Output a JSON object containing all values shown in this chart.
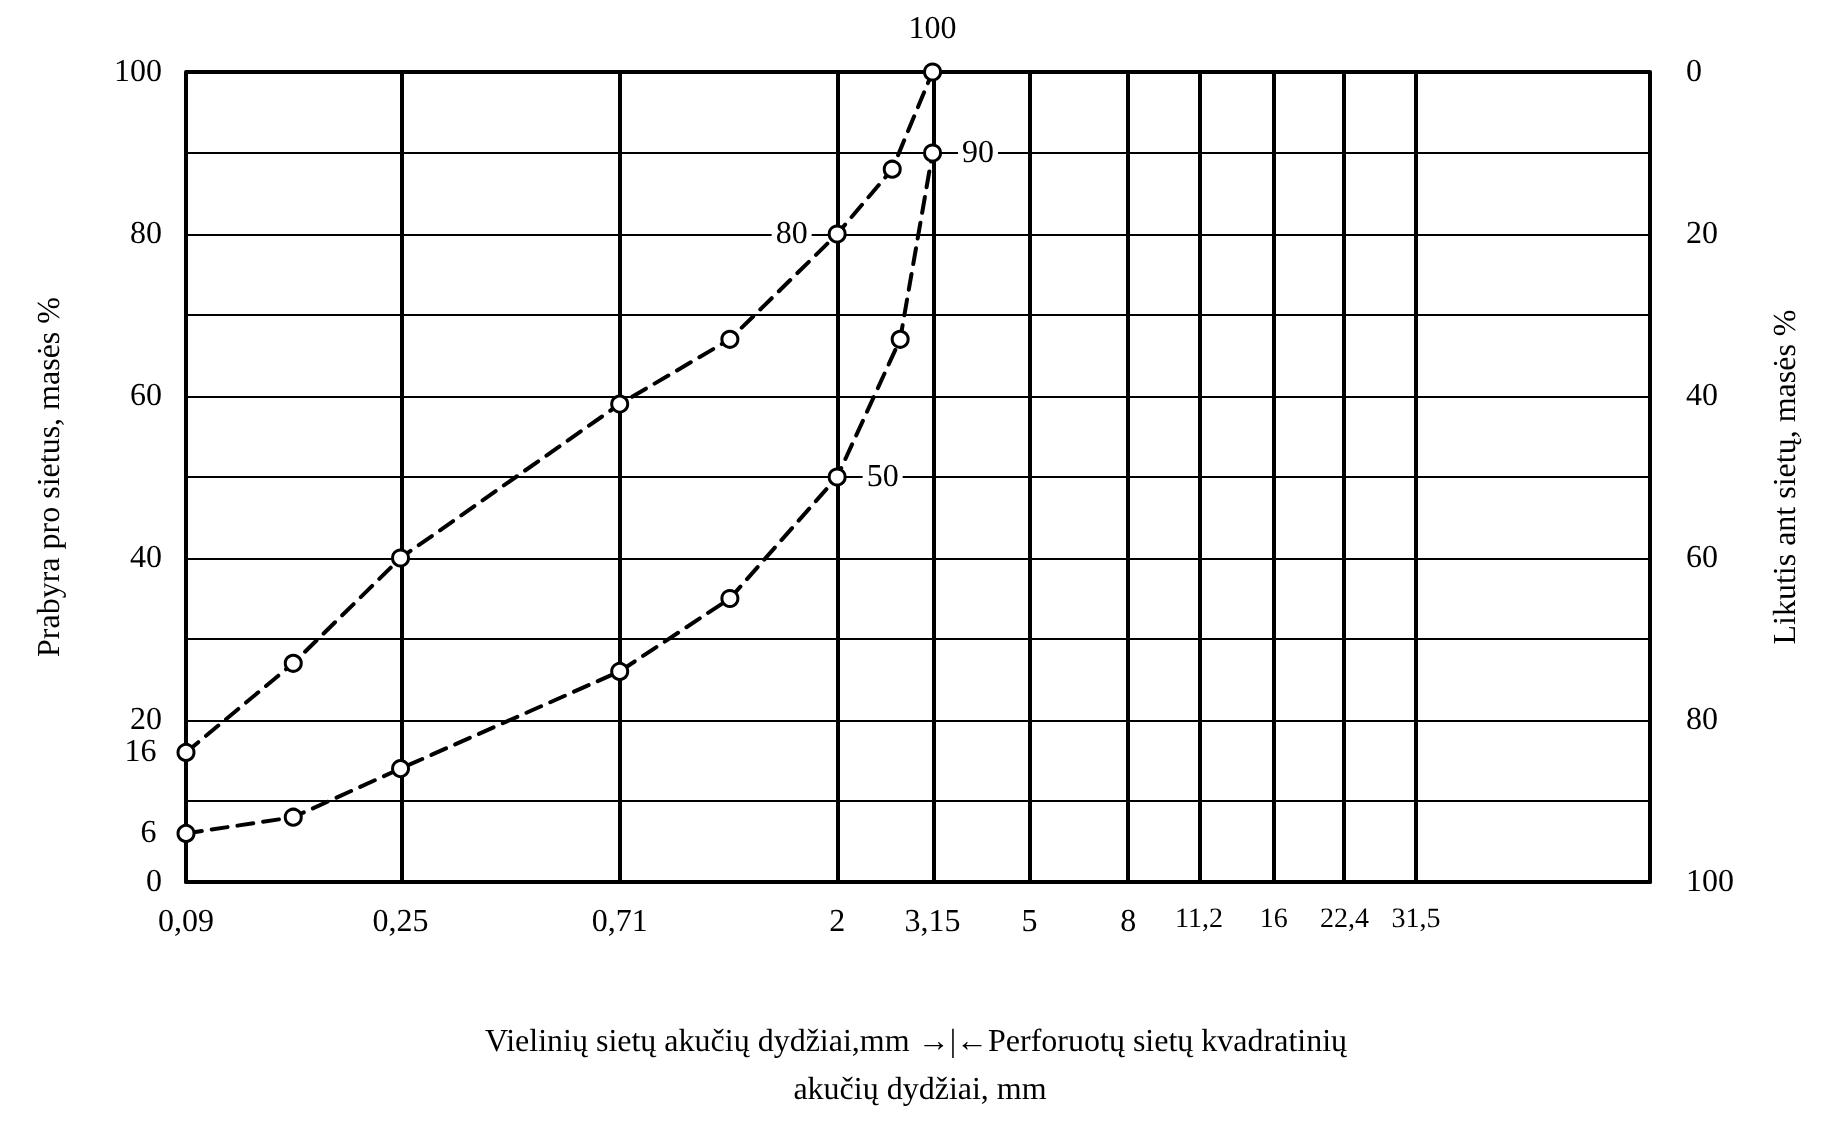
{
  "chart_data": {
    "type": "line",
    "xlabel": "Vielinių sietų akučių dydžiai,mm →|←Perforuotų sietų kvadratinių akučių dydžiai, mm",
    "ylabel": "Prabyra pro sietus, masės %",
    "y2label": "Likutis ant sietų, masės %",
    "log": "x",
    "xlim": [
      0.09,
      96
    ],
    "xticks": [
      {
        "value": 0.09,
        "label": "0,09"
      },
      {
        "value": 0.25,
        "label": "0,25"
      },
      {
        "value": 0.71,
        "label": "0,71"
      },
      2,
      {
        "value": 3.15,
        "label": "3,15"
      },
      5,
      8,
      {
        "value": 11.2,
        "label": "11,2"
      },
      16,
      {
        "value": 22.4,
        "label": "22,4"
      },
      {
        "value": 31.5,
        "label": "31,5"
      }
    ],
    "ylim": [
      0,
      100
    ],
    "yticks": [
      0,
      {
        "value": 10,
        "label": null
      },
      20,
      {
        "value": 30,
        "label": null
      },
      40,
      {
        "value": 50,
        "label": null
      },
      60,
      {
        "value": 70,
        "label": null
      },
      80,
      {
        "value": 90,
        "label": null
      },
      100
    ],
    "y2lim": [
      100,
      0
    ],
    "y2ticks": [
      100,
      80,
      60,
      40,
      20,
      0
    ],
    "grid": true,
    "marker": "circle",
    "line_style": "dashed",
    "series": [
      {
        "color": "#000000",
        "x": [
          0.09,
          0.15,
          0.25,
          0.71,
          1.2,
          2,
          2.6,
          3.15
        ],
        "values": [
          16,
          27,
          40,
          59,
          67,
          80,
          88,
          100
        ],
        "value_labels": [
          "16",
          null,
          null,
          null,
          null,
          "80",
          null,
          "100"
        ]
      },
      {
        "color": "#000000",
        "x": [
          0.09,
          0.15,
          0.25,
          0.71,
          1.2,
          2,
          2.7,
          3.15
        ],
        "values": [
          6,
          8,
          14,
          26,
          35,
          50,
          67,
          90
        ],
        "value_labels": [
          "6",
          null,
          null,
          null,
          null,
          "50",
          null,
          "90"
        ]
      }
    ]
  }
}
